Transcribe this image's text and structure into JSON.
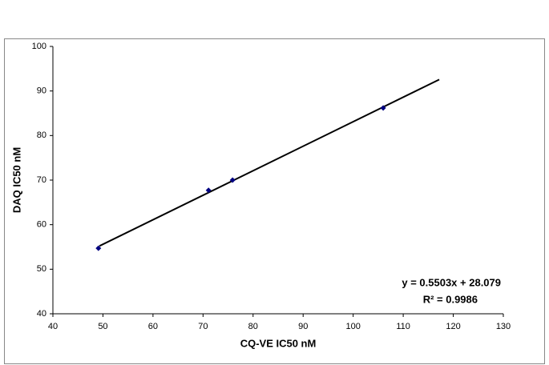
{
  "chart_data": {
    "type": "scatter",
    "x_label": "CQ-VE IC50 nM",
    "y_label": "DAQ IC50 nM",
    "points": {
      "color": "#000080",
      "x": [
        49.1,
        71.1,
        75.9,
        106
      ],
      "values": [
        54.7,
        67.7,
        70.0,
        86.2
      ]
    },
    "trendline": {
      "color": "#000000",
      "x": [
        49.3,
        117.2
      ],
      "values": [
        55.21,
        92.57
      ]
    },
    "annotations": [
      "y = 0.5503x + 28.079",
      "R² = 0.9986"
    ],
    "xlim": [
      40,
      130
    ],
    "xticks": [
      40,
      50,
      60,
      70,
      80,
      90,
      100,
      110,
      120,
      130
    ],
    "ylim": [
      40,
      100
    ],
    "yticks": [
      40,
      50,
      60,
      70,
      80,
      90,
      100
    ],
    "grid": false
  }
}
